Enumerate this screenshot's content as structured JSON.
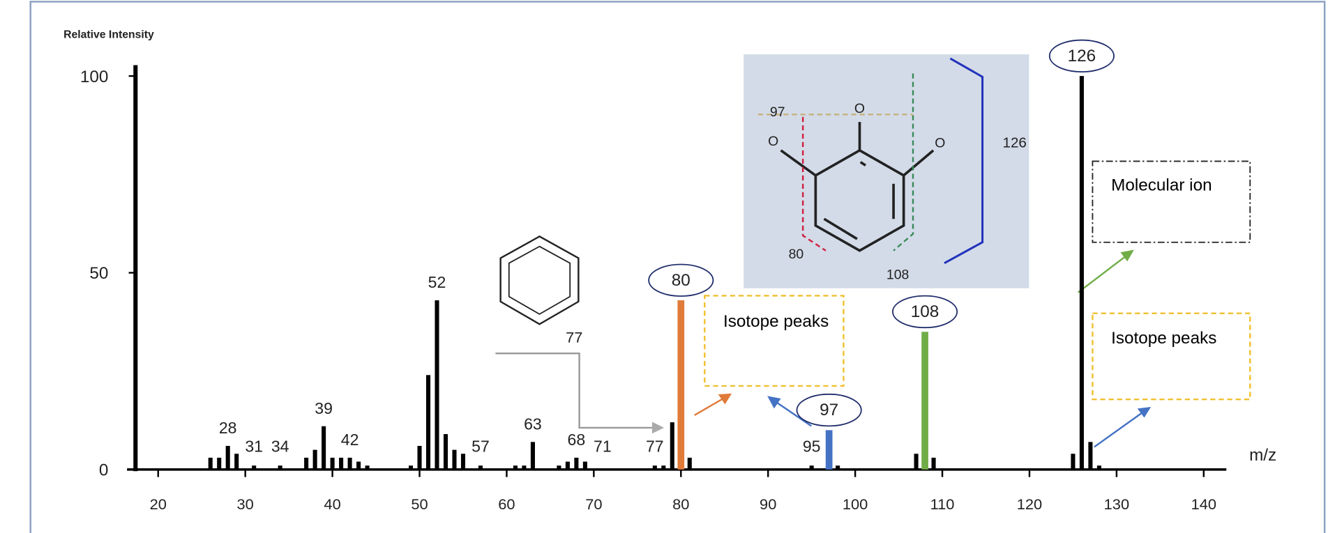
{
  "chart_data": {
    "type": "bar",
    "ylabel": "Relative Intensity",
    "xlabel": "m/z",
    "xlim": [
      17.4,
      142.6
    ],
    "xticks": [
      20,
      30,
      40,
      50,
      60,
      70,
      80,
      90,
      100,
      110,
      120,
      130,
      140
    ],
    "ylim": [
      0,
      100
    ],
    "yticks": [
      0,
      50,
      100
    ],
    "series": [
      {
        "color": "#000000",
        "x": [
          26,
          27,
          28,
          29,
          31,
          34,
          37,
          38,
          39,
          40,
          41,
          42,
          43,
          44,
          49,
          50,
          51,
          52,
          53,
          54,
          55,
          57,
          61,
          62,
          63,
          66,
          67,
          68,
          69,
          77,
          78,
          79,
          81,
          95,
          98,
          107,
          109,
          125,
          126,
          127,
          128
        ],
        "values": [
          3,
          3,
          6,
          4,
          1,
          1,
          3,
          5,
          11,
          3,
          3,
          3,
          2,
          1,
          1,
          6,
          24,
          43,
          9,
          5,
          4,
          1,
          1,
          1,
          7,
          1,
          2,
          3,
          2,
          1,
          1,
          12,
          3,
          1,
          1,
          4,
          3,
          4,
          100,
          7,
          1
        ]
      },
      {
        "color": "#e07b39",
        "x": [
          80
        ],
        "values": [
          43
        ]
      },
      {
        "color": "#4472c4",
        "x": [
          97
        ],
        "values": [
          10
        ]
      },
      {
        "color": "#70ad47",
        "x": [
          108
        ],
        "values": [
          35
        ]
      }
    ],
    "peak_labels": [
      28,
      31,
      34,
      39,
      42,
      52,
      57,
      63,
      68,
      71,
      77,
      95
    ],
    "circled_labels": [
      80,
      97,
      108,
      126
    ],
    "boxes": [
      "Isotope peaks",
      "Molecular ion",
      "Isotope peaks"
    ],
    "benzene_label": "77",
    "structure_labels": [
      "97",
      "126",
      "80",
      "108"
    ],
    "atom_labels": [
      "O",
      "O",
      "O"
    ]
  }
}
